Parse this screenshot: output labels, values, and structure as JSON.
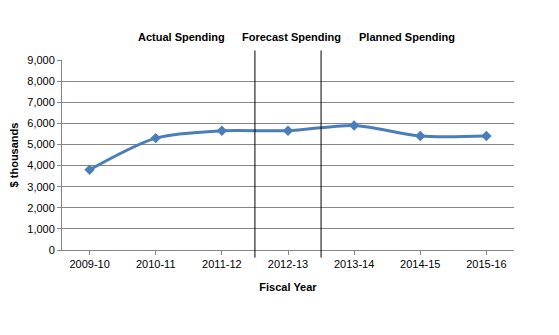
{
  "chart_data": {
    "type": "line",
    "x_label": "Fiscal Year",
    "y_label": "$ thousands",
    "annotations": [
      "Actual Spending",
      "Forecast Spending",
      "Planned Spending"
    ],
    "categories": [
      "2009-10",
      "2010-11",
      "2011-12",
      "2012-13",
      "2013-14",
      "2014-15",
      "2015-16"
    ],
    "values": [
      3800,
      5300,
      5650,
      5650,
      5900,
      5400,
      5400
    ],
    "color": "#4a7ebb",
    "marker": "diamond",
    "line_style": "solid",
    "ylim": [
      0,
      9000
    ],
    "yticks": [
      0,
      {
        "value": 1000,
        "label": "1,000"
      },
      {
        "value": 2000,
        "label": "2,000"
      },
      {
        "value": 3000,
        "label": "3,000"
      },
      {
        "value": 4000,
        "label": "4,000"
      },
      {
        "value": 5000,
        "label": "5,000"
      },
      {
        "value": 6000,
        "label": "6,000"
      },
      {
        "value": 7000,
        "label": "7,000"
      },
      {
        "value": 8000,
        "label": "8,000"
      },
      {
        "value": 9000,
        "label": "9,000"
      }
    ],
    "grid": true
  }
}
